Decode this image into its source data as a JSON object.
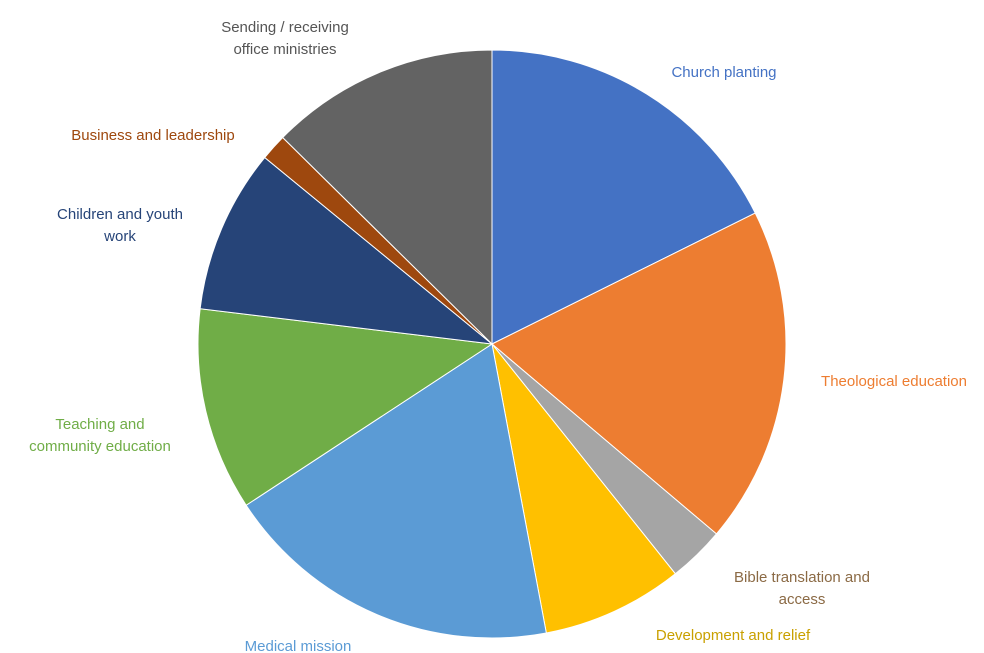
{
  "chart_data": {
    "type": "pie",
    "title": "",
    "start_angle_deg": 0,
    "direction": "clockwise",
    "slices": [
      {
        "label": "Church planting",
        "value": 18.2,
        "color": "#4472C4",
        "label_color": "#4472C4"
      },
      {
        "label": "Theological education",
        "value": 19.1,
        "color": "#ED7D31",
        "label_color": "#ED7D31"
      },
      {
        "label": "Bible translation and access",
        "value": 3.2,
        "color": "#A5A5A5",
        "label_color": "#8B6A45"
      },
      {
        "label": "Development and relief",
        "value": 8.0,
        "color": "#FFC000",
        "label_color": "#C9A000"
      },
      {
        "label": "Medical mission",
        "value": 19.3,
        "color": "#5B9BD5",
        "label_color": "#5B9BD5"
      },
      {
        "label": "Teaching and community education",
        "value": 11.5,
        "color": "#70AD47",
        "label_color": "#70AD47"
      },
      {
        "label": "Children and youth work",
        "value": 9.3,
        "color": "#264478",
        "label_color": "#264478"
      },
      {
        "label": "Business and leadership",
        "value": 1.5,
        "color": "#9E480E",
        "label_color": "#9E480E"
      },
      {
        "label": "Sending / receiving office ministries",
        "value": 13.0,
        "color": "#636363",
        "label_color": "#555555"
      }
    ]
  }
}
